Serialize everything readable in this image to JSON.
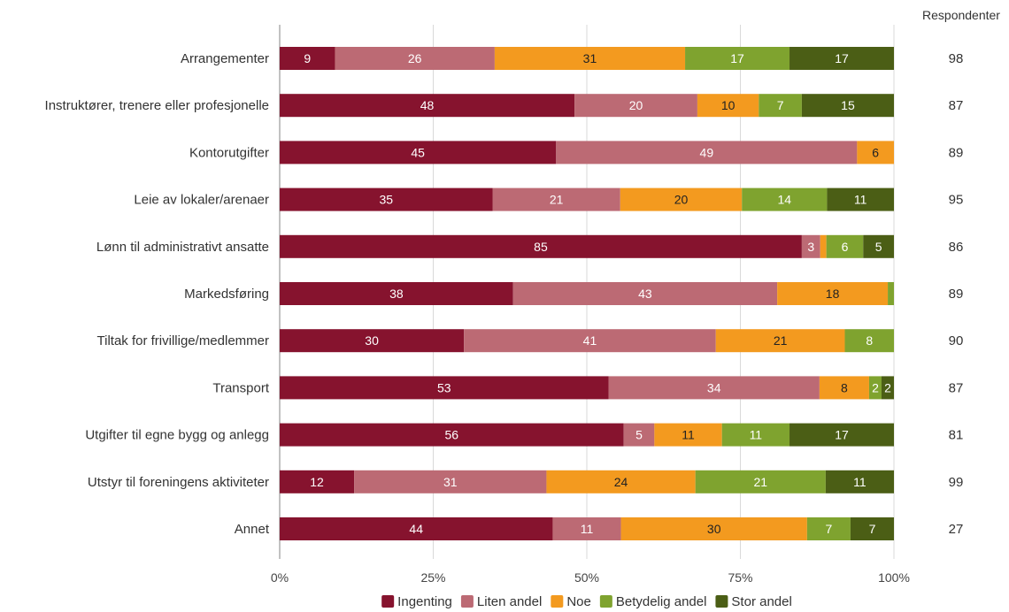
{
  "chart_data": {
    "type": "bar",
    "orientation": "horizontal",
    "stacked": true,
    "percent_stacked": true,
    "categories": [
      "Arrangementer",
      "Instruktører, trenere eller profesjonelle",
      "Kontorutgifter",
      "Leie av lokaler/arenaer",
      "Lønn til administrativt ansatte",
      "Markedsføring",
      "Tiltak for frivillige/medlemmer",
      "Transport",
      "Utgifter til egne bygg og anlegg",
      "Utstyr til foreningens aktiviteter",
      "Annet"
    ],
    "series": [
      {
        "name": "Ingenting",
        "color": "#86132e",
        "label_color": "#ffffff",
        "values": [
          9,
          48,
          45,
          35,
          85,
          38,
          30,
          53,
          56,
          12,
          44
        ]
      },
      {
        "name": "Liten andel",
        "color": "#bc6a74",
        "label_color": "#ffffff",
        "values": [
          26,
          20,
          49,
          21,
          3,
          43,
          41,
          34,
          5,
          31,
          11
        ]
      },
      {
        "name": "Noe",
        "color": "#f39a1f",
        "label_color": "#222222",
        "values": [
          31,
          10,
          6,
          20,
          1,
          18,
          21,
          8,
          11,
          24,
          30
        ]
      },
      {
        "name": "Betydelig andel",
        "color": "#7fa32f",
        "label_color": "#ffffff",
        "values": [
          17,
          7,
          0,
          14,
          6,
          1,
          8,
          2,
          11,
          21,
          7
        ]
      },
      {
        "name": "Stor andel",
        "color": "#4b5e15",
        "label_color": "#ffffff",
        "values": [
          17,
          15,
          0,
          11,
          5,
          0,
          0,
          2,
          17,
          11,
          7
        ]
      }
    ],
    "value_labels": [
      [
        "9",
        "26",
        "31",
        "17",
        "17"
      ],
      [
        "48",
        "20",
        "10",
        "7",
        "15"
      ],
      [
        "45",
        "49",
        "6",
        "",
        ""
      ],
      [
        "35",
        "21",
        "20",
        "14",
        "11"
      ],
      [
        "85",
        "3",
        "",
        "6",
        "5"
      ],
      [
        "38",
        "43",
        "18",
        "",
        ""
      ],
      [
        "30",
        "41",
        "21",
        "8",
        ""
      ],
      [
        "53",
        "34",
        "8",
        "2",
        "2"
      ],
      [
        "56",
        "5",
        "11",
        "11",
        "17"
      ],
      [
        "12",
        "31",
        "24",
        "21",
        "11"
      ],
      [
        "44",
        "11",
        "30",
        "7",
        "7"
      ]
    ],
    "respondents_header": "Respondenter",
    "respondents": [
      "98",
      "87",
      "89",
      "95",
      "86",
      "89",
      "90",
      "87",
      "81",
      "99",
      "27"
    ],
    "x_ticks": [
      0,
      25,
      50,
      75,
      100
    ],
    "x_tick_labels": [
      "0%",
      "25%",
      "50%",
      "75%",
      "100%"
    ],
    "xlim": [
      0,
      100
    ],
    "grid": true,
    "legend_position": "bottom"
  }
}
